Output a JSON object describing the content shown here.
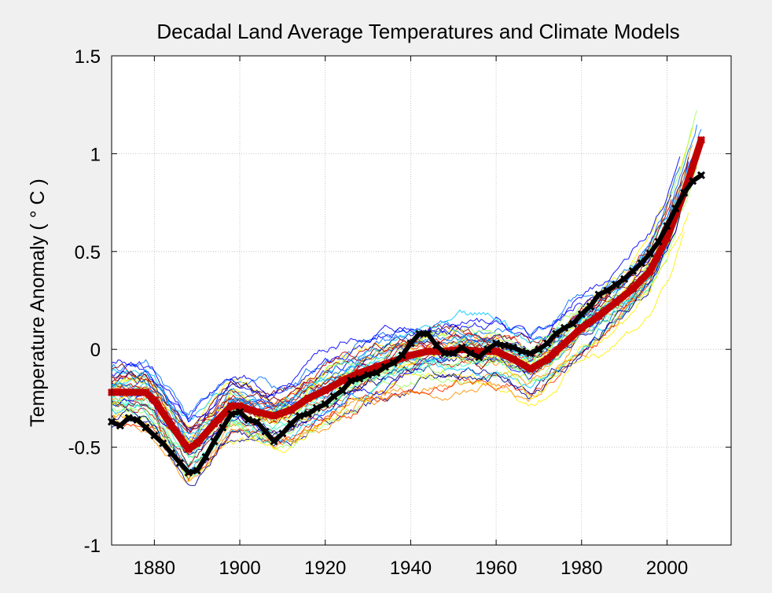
{
  "chart_data": {
    "type": "line",
    "title": "Decadal Land Average Temperatures and Climate Models",
    "xlabel": "",
    "ylabel": "Temperature Anomaly ( ° C )",
    "xlim": [
      1870,
      2015
    ],
    "ylim": [
      -1,
      1.5
    ],
    "xticks": [
      "1880",
      "1900",
      "1920",
      "1940",
      "1960",
      "1980",
      "2000"
    ],
    "yticks": [
      "1.5",
      "1",
      "0.5",
      "0",
      "-0.5",
      "-1"
    ],
    "grid": true,
    "colors": {
      "observed": "#000000",
      "model_mean": "#c00000",
      "model_palette": [
        "#00008f",
        "#0000ff",
        "#0070ff",
        "#00c8ff",
        "#40ffbf",
        "#9fff60",
        "#ffef00",
        "#ff9000",
        "#ff3000",
        "#bf0000",
        "#800000"
      ]
    },
    "series": [
      {
        "style": "thick-black-markers",
        "x": [
          1870,
          1872,
          1874,
          1876,
          1878,
          1880,
          1882,
          1884,
          1886,
          1888,
          1890,
          1892,
          1894,
          1896,
          1898,
          1900,
          1902,
          1904,
          1906,
          1908,
          1910,
          1912,
          1914,
          1916,
          1918,
          1920,
          1922,
          1924,
          1926,
          1928,
          1930,
          1932,
          1934,
          1936,
          1938,
          1940,
          1942,
          1944,
          1946,
          1948,
          1950,
          1952,
          1954,
          1956,
          1958,
          1960,
          1962,
          1964,
          1966,
          1968,
          1970,
          1972,
          1974,
          1976,
          1978,
          1980,
          1982,
          1984,
          1986,
          1988,
          1990,
          1992,
          1994,
          1996,
          1998,
          2000,
          2002,
          2004,
          2006,
          2008
        ],
        "values": [
          -0.37,
          -0.39,
          -0.35,
          -0.36,
          -0.4,
          -0.44,
          -0.48,
          -0.53,
          -0.58,
          -0.63,
          -0.62,
          -0.55,
          -0.47,
          -0.4,
          -0.33,
          -0.32,
          -0.36,
          -0.37,
          -0.42,
          -0.47,
          -0.43,
          -0.38,
          -0.34,
          -0.33,
          -0.3,
          -0.28,
          -0.24,
          -0.21,
          -0.16,
          -0.15,
          -0.13,
          -0.12,
          -0.09,
          -0.07,
          -0.03,
          0.03,
          0.08,
          0.08,
          0.02,
          -0.02,
          -0.02,
          0.01,
          -0.02,
          -0.04,
          0.0,
          0.03,
          0.02,
          0.01,
          -0.01,
          -0.02,
          0.0,
          0.03,
          0.08,
          0.11,
          0.13,
          0.18,
          0.22,
          0.28,
          0.3,
          0.33,
          0.36,
          0.4,
          0.44,
          0.49,
          0.55,
          0.63,
          0.72,
          0.8,
          0.86,
          0.89
        ]
      },
      {
        "style": "thick-red-markers",
        "x": [
          1870,
          1874,
          1878,
          1880,
          1884,
          1888,
          1890,
          1894,
          1898,
          1900,
          1904,
          1908,
          1912,
          1916,
          1920,
          1924,
          1928,
          1932,
          1936,
          1940,
          1944,
          1948,
          1952,
          1956,
          1960,
          1964,
          1968,
          1972,
          1976,
          1980,
          1984,
          1988,
          1992,
          1996,
          2000,
          2004,
          2008
        ],
        "values": [
          -0.22,
          -0.22,
          -0.22,
          -0.26,
          -0.39,
          -0.51,
          -0.48,
          -0.38,
          -0.29,
          -0.29,
          -0.32,
          -0.34,
          -0.31,
          -0.25,
          -0.21,
          -0.16,
          -0.12,
          -0.09,
          -0.06,
          -0.03,
          -0.01,
          -0.01,
          0.0,
          -0.01,
          -0.01,
          -0.05,
          -0.1,
          -0.05,
          0.03,
          0.11,
          0.17,
          0.24,
          0.31,
          0.4,
          0.57,
          0.8,
          1.07
        ]
      }
    ],
    "model_ensemble_note": ""
  }
}
